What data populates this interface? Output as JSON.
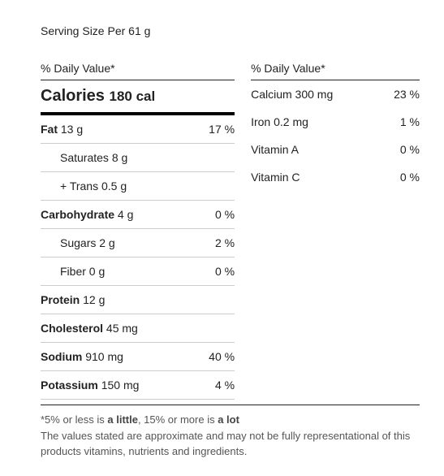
{
  "serving": "Serving Size Per 61 g",
  "dvHeader": "% Daily Value*",
  "calories": {
    "label": "Calories",
    "value": "180 cal"
  },
  "left": [
    {
      "label": "Fat",
      "amount": "13 g",
      "pct": "17 %",
      "bold": true
    },
    {
      "label": "Saturates",
      "amount": "8 g",
      "pct": "",
      "indent": true
    },
    {
      "label": "+ Trans",
      "amount": "0.5 g",
      "pct": "",
      "indent": true
    },
    {
      "label": "Carbohydrate",
      "amount": "4 g",
      "pct": "0 %",
      "bold": true
    },
    {
      "label": "Sugars",
      "amount": "2 g",
      "pct": "2 %",
      "indent": true
    },
    {
      "label": "Fiber",
      "amount": "0 g",
      "pct": "0 %",
      "indent": true
    },
    {
      "label": "Protein",
      "amount": "12 g",
      "pct": "",
      "bold": true
    },
    {
      "label": "Cholesterol",
      "amount": "45 mg",
      "pct": "",
      "bold": true
    },
    {
      "label": "Sodium",
      "amount": "910 mg",
      "pct": "40 %",
      "bold": true
    },
    {
      "label": "Potassium",
      "amount": "150 mg",
      "pct": "4 %",
      "bold": true
    }
  ],
  "right": [
    {
      "label": "Calcium",
      "amount": "300 mg",
      "pct": "23 %"
    },
    {
      "label": "Iron",
      "amount": "0.2 mg",
      "pct": "1 %"
    },
    {
      "label": "Vitamin A",
      "amount": "",
      "pct": "0 %"
    },
    {
      "label": "Vitamin C",
      "amount": "",
      "pct": "0 %"
    }
  ],
  "footer": {
    "line1_a": "*5% or less is ",
    "line1_b1": "a little",
    "line1_b": ", 15% or more is ",
    "line1_b2": "a lot",
    "line2": "The values stated are approximate and may not be fully representational of this products vitamins, nutrients and ingredients."
  }
}
